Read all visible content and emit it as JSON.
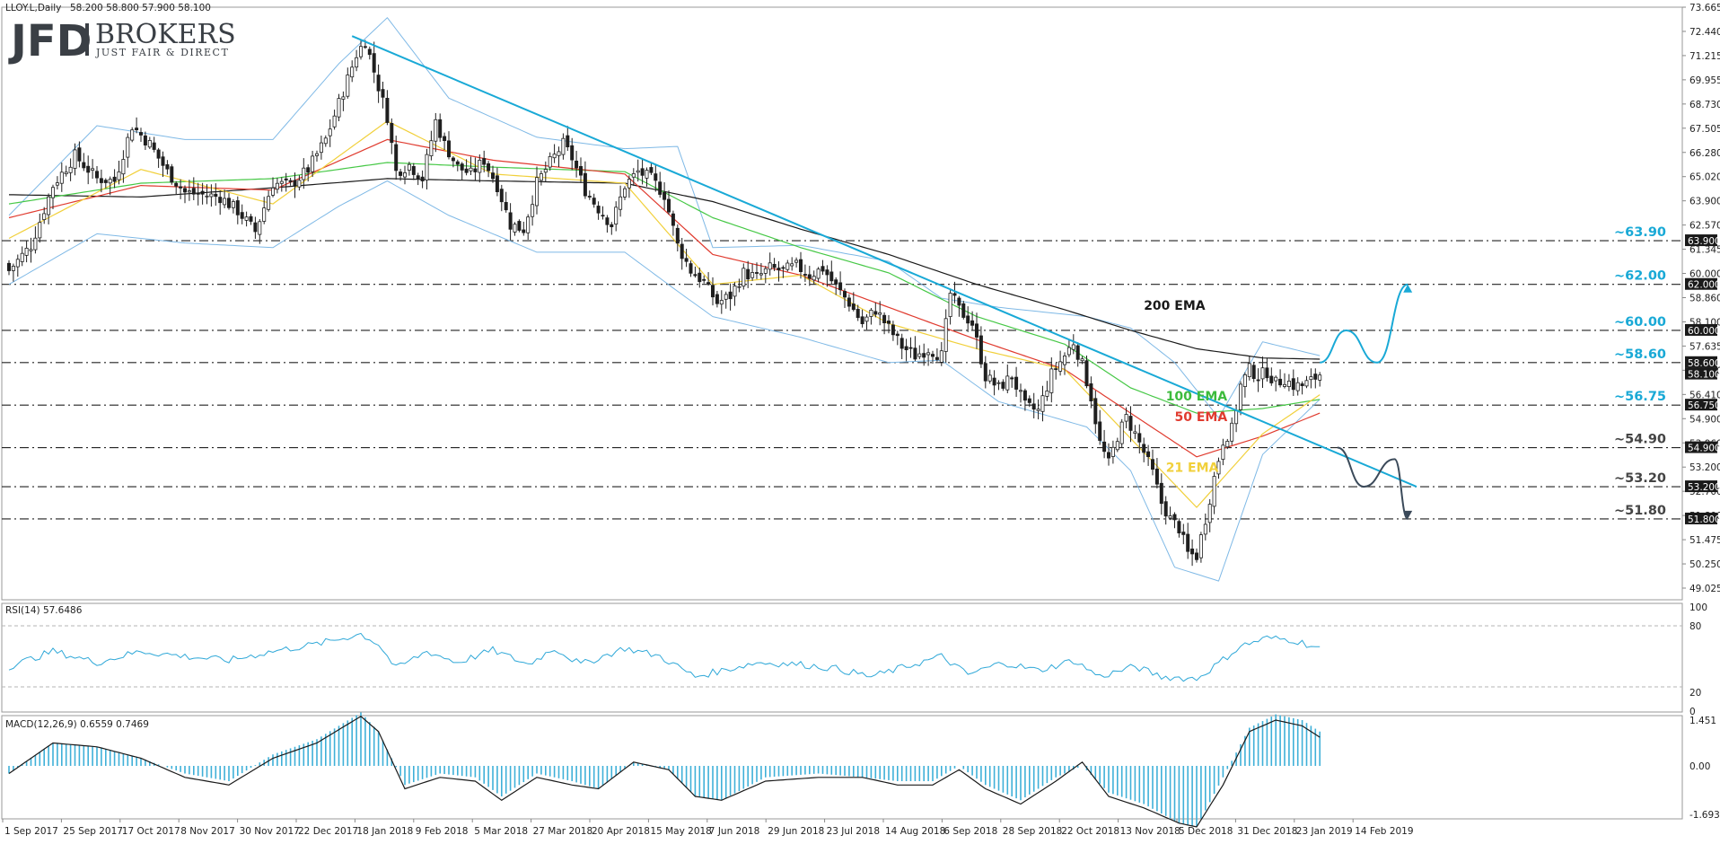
{
  "header": {
    "title": "LLOY.L,Daily",
    "ohlc": "58.200 58.800 57.900 58.100",
    "rsi": "RSI(14) 57.6486",
    "macd": "MACD(12,26,9) 0.6559 0.7469"
  },
  "logo": {
    "mark": "JFD",
    "name": "BROKERS",
    "tagline": "JUST FAIR & DIRECT"
  },
  "colors": {
    "candle": "#1f1f1f",
    "bollinger": "#7fb9e6",
    "ema21": "#f1d03b",
    "ema50": "#e03b2f",
    "ema100": "#46c846",
    "ema200": "#1a1a1a",
    "trend": "#19a9d6",
    "rsi": "#2fa8d8",
    "macd_hist": "#3fb0d8"
  },
  "price_axis": [
    "73.665",
    "72.440",
    "71.215",
    "69.955",
    "68.730",
    "67.505",
    "66.280",
    "65.020",
    "63.900",
    "62.570",
    "61.345",
    "60.000",
    "58.860",
    "58.100",
    "57.635",
    "56.750",
    "56.410",
    "54.900",
    "53.960",
    "53.200",
    "52.700",
    "51.800",
    "51.475",
    "50.250",
    "49.025"
  ],
  "price_tags": [
    {
      "name": "tag-63900",
      "text": "63.900",
      "v": 63.9,
      "color": "#1a1a1a"
    },
    {
      "name": "tag-62000",
      "text": "62.000",
      "v": 62.0,
      "color": "#1a1a1a"
    },
    {
      "name": "tag-60000",
      "text": "60.000",
      "v": 60.0,
      "color": "#1a1a1a"
    },
    {
      "name": "tag-58600",
      "text": "58.600",
      "v": 58.6,
      "color": "#1a1a1a"
    },
    {
      "name": "tag-58100",
      "text": "58.100",
      "v": 58.1,
      "color": "#1a1a1a"
    },
    {
      "name": "tag-56750",
      "text": "56.750",
      "v": 56.75,
      "color": "#1a1a1a"
    },
    {
      "name": "tag-54900",
      "text": "54.900",
      "v": 54.9,
      "color": "#1a1a1a"
    },
    {
      "name": "tag-53200",
      "text": "53.200",
      "v": 53.2,
      "color": "#1a1a1a"
    },
    {
      "name": "tag-51800",
      "text": "51.800",
      "v": 51.8,
      "color": "#1a1a1a"
    }
  ],
  "levels": [
    {
      "name": "level-63-90",
      "text": "~63.90",
      "v": 63.9,
      "color": "#19a9d6"
    },
    {
      "name": "level-62-00",
      "text": "~62.00",
      "v": 62.0,
      "color": "#19a9d6"
    },
    {
      "name": "level-60-00",
      "text": "~60.00",
      "v": 60.0,
      "color": "#19a9d6"
    },
    {
      "name": "level-58-60",
      "text": "~58.60",
      "v": 58.6,
      "color": "#19a9d6"
    },
    {
      "name": "level-56-75",
      "text": "~56.75",
      "v": 56.75,
      "color": "#19a9d6"
    },
    {
      "name": "level-54-90",
      "text": "~54.90",
      "v": 54.9,
      "color": "#444444"
    },
    {
      "name": "level-53-20",
      "text": "~53.20",
      "v": 53.2,
      "color": "#444444"
    },
    {
      "name": "level-51-80",
      "text": "~51.80",
      "v": 51.8,
      "color": "#444444"
    }
  ],
  "ema_labels": [
    {
      "name": "label-200-ema",
      "text": "200 EMA",
      "color": "#1a1a1a",
      "bar": 258,
      "v": 60.9
    },
    {
      "name": "label-100-ema",
      "text": "100 EMA",
      "color": "#3dbb3d",
      "bar": 263,
      "v": 56.95
    },
    {
      "name": "label-50-ema",
      "text": "50 EMA",
      "color": "#e03b2f",
      "bar": 265,
      "v": 56.05
    },
    {
      "name": "label-21-ema",
      "text": "21 EMA",
      "color": "#f1d03b",
      "bar": 263,
      "v": 53.85
    }
  ],
  "rsi_axis": [
    "100",
    "80",
    "20",
    "0"
  ],
  "macd_axis": [
    "1.451",
    "0.00",
    "-1.6934"
  ],
  "dates": [
    "1 Sep 2017",
    "25 Sep 2017",
    "17 Oct 2017",
    "8 Nov 2017",
    "30 Nov 2017",
    "22 Dec 2017",
    "18 Jan 2018",
    "9 Feb 2018",
    "5 Mar 2018",
    "27 Mar 2018",
    "20 Apr 2018",
    "15 May 2018",
    "7 Jun 2018",
    "29 Jun 2018",
    "23 Jul 2018",
    "14 Aug 2018",
    "6 Sep 2018",
    "28 Sep 2018",
    "22 Oct 2018",
    "13 Nov 2018",
    "5 Dec 2018",
    "31 Dec 2018",
    "23 Jan 2019",
    "14 Feb 2019"
  ],
  "chart_data": {
    "type": "candlestick",
    "symbol": "LLOY.L",
    "timeframe": "Daily",
    "ylim": [
      49.025,
      73.665
    ],
    "rsi_ylim": [
      0,
      100
    ],
    "macd_ylim": [
      -1.6934,
      1.451
    ],
    "close_anchors": [
      [
        0,
        62.6
      ],
      [
        5,
        63.7
      ],
      [
        10,
        66.3
      ],
      [
        15,
        67.6
      ],
      [
        20,
        66.6
      ],
      [
        24,
        66.5
      ],
      [
        28,
        68.9
      ],
      [
        32,
        68.1
      ],
      [
        36,
        66.9
      ],
      [
        40,
        66.0
      ],
      [
        44,
        65.9
      ],
      [
        48,
        65.8
      ],
      [
        52,
        65.2
      ],
      [
        56,
        64.3
      ],
      [
        60,
        66.4
      ],
      [
        64,
        66.3
      ],
      [
        68,
        67.0
      ],
      [
        72,
        68.3
      ],
      [
        76,
        70.4
      ],
      [
        79,
        72.0
      ],
      [
        81,
        72.6
      ],
      [
        84,
        70.6
      ],
      [
        86,
        69.3
      ],
      [
        88,
        66.9
      ],
      [
        91,
        67.2
      ],
      [
        94,
        66.6
      ],
      [
        97,
        69.1
      ],
      [
        99,
        68.1
      ],
      [
        102,
        67.1
      ],
      [
        105,
        66.8
      ],
      [
        108,
        67.4
      ],
      [
        111,
        66.3
      ],
      [
        114,
        64.6
      ],
      [
        117,
        64.4
      ],
      [
        120,
        66.4
      ],
      [
        123,
        67.3
      ],
      [
        126,
        68.1
      ],
      [
        128,
        67.5
      ],
      [
        131,
        66.1
      ],
      [
        134,
        65.3
      ],
      [
        137,
        64.6
      ],
      [
        140,
        66.3
      ],
      [
        143,
        66.9
      ],
      [
        146,
        66.6
      ],
      [
        149,
        65.9
      ],
      [
        152,
        63.7
      ],
      [
        155,
        62.6
      ],
      [
        158,
        62.1
      ],
      [
        161,
        61.2
      ],
      [
        164,
        61.5
      ],
      [
        167,
        62.5
      ],
      [
        170,
        62.3
      ],
      [
        173,
        62.7
      ],
      [
        176,
        62.6
      ],
      [
        179,
        62.8
      ],
      [
        182,
        62.4
      ],
      [
        185,
        62.7
      ],
      [
        188,
        61.9
      ],
      [
        191,
        61.2
      ],
      [
        194,
        60.3
      ],
      [
        197,
        60.9
      ],
      [
        200,
        60.1
      ],
      [
        203,
        59.3
      ],
      [
        206,
        58.9
      ],
      [
        209,
        59.2
      ],
      [
        212,
        58.9
      ],
      [
        214,
        61.6
      ],
      [
        216,
        60.9
      ],
      [
        219,
        60.3
      ],
      [
        222,
        58.0
      ],
      [
        225,
        57.5
      ],
      [
        228,
        58.0
      ],
      [
        231,
        56.7
      ],
      [
        234,
        56.5
      ],
      [
        237,
        58.1
      ],
      [
        240,
        58.9
      ],
      [
        242,
        59.5
      ],
      [
        244,
        58.5
      ],
      [
        246,
        57.1
      ],
      [
        248,
        55.1
      ],
      [
        250,
        54.2
      ],
      [
        252,
        55.4
      ],
      [
        254,
        56.2
      ],
      [
        256,
        55.5
      ],
      [
        258,
        54.7
      ],
      [
        260,
        53.8
      ],
      [
        262,
        52.5
      ],
      [
        264,
        51.8
      ],
      [
        266,
        51.4
      ],
      [
        268,
        50.3
      ],
      [
        270,
        50.2
      ],
      [
        272,
        51.8
      ],
      [
        274,
        53.6
      ],
      [
        276,
        55.2
      ],
      [
        278,
        55.7
      ],
      [
        280,
        57.6
      ],
      [
        282,
        58.3
      ],
      [
        284,
        58.0
      ],
      [
        286,
        58.2
      ],
      [
        288,
        57.7
      ],
      [
        290,
        57.9
      ],
      [
        292,
        57.6
      ],
      [
        294,
        57.6
      ],
      [
        296,
        57.8
      ],
      [
        298,
        58.1
      ]
    ],
    "ema200_anchors": [
      [
        0,
        65.9
      ],
      [
        30,
        65.8
      ],
      [
        60,
        66.2
      ],
      [
        86,
        66.6
      ],
      [
        110,
        66.5
      ],
      [
        140,
        66.4
      ],
      [
        160,
        65.6
      ],
      [
        180,
        64.4
      ],
      [
        200,
        63.3
      ],
      [
        220,
        62.0
      ],
      [
        240,
        60.9
      ],
      [
        255,
        60.0
      ],
      [
        270,
        59.2
      ],
      [
        285,
        58.8
      ],
      [
        298,
        58.75
      ]
    ],
    "ema100_anchors": [
      [
        0,
        65.5
      ],
      [
        30,
        66.4
      ],
      [
        60,
        66.6
      ],
      [
        86,
        67.3
      ],
      [
        110,
        67.1
      ],
      [
        140,
        66.9
      ],
      [
        160,
        64.9
      ],
      [
        180,
        63.6
      ],
      [
        200,
        62.5
      ],
      [
        220,
        60.6
      ],
      [
        240,
        59.4
      ],
      [
        255,
        57.5
      ],
      [
        270,
        56.4
      ],
      [
        285,
        56.6
      ],
      [
        298,
        57.0
      ]
    ],
    "ema50_anchors": [
      [
        0,
        64.9
      ],
      [
        30,
        66.3
      ],
      [
        60,
        66.1
      ],
      [
        86,
        68.3
      ],
      [
        110,
        67.4
      ],
      [
        140,
        66.8
      ],
      [
        160,
        63.3
      ],
      [
        180,
        62.4
      ],
      [
        200,
        61.0
      ],
      [
        220,
        59.6
      ],
      [
        240,
        58.3
      ],
      [
        255,
        56.4
      ],
      [
        270,
        54.5
      ],
      [
        285,
        55.4
      ],
      [
        298,
        56.4
      ]
    ],
    "ema21_anchors": [
      [
        0,
        64.0
      ],
      [
        30,
        67.0
      ],
      [
        60,
        65.5
      ],
      [
        86,
        69.1
      ],
      [
        110,
        66.8
      ],
      [
        140,
        66.4
      ],
      [
        160,
        62.0
      ],
      [
        180,
        62.4
      ],
      [
        200,
        60.3
      ],
      [
        220,
        59.2
      ],
      [
        240,
        58.3
      ],
      [
        255,
        55.3
      ],
      [
        270,
        52.3
      ],
      [
        285,
        55.5
      ],
      [
        298,
        57.2
      ]
    ],
    "bb_upper_anchors": [
      [
        0,
        65.0
      ],
      [
        20,
        68.9
      ],
      [
        40,
        68.3
      ],
      [
        60,
        68.3
      ],
      [
        75,
        71.6
      ],
      [
        86,
        73.6
      ],
      [
        100,
        70.1
      ],
      [
        120,
        68.4
      ],
      [
        140,
        67.9
      ],
      [
        152,
        68.0
      ],
      [
        160,
        63.6
      ],
      [
        180,
        63.7
      ],
      [
        200,
        63.0
      ],
      [
        212,
        61.4
      ],
      [
        225,
        61.0
      ],
      [
        245,
        60.6
      ],
      [
        255,
        60.1
      ],
      [
        265,
        58.6
      ],
      [
        275,
        56.2
      ],
      [
        285,
        59.5
      ],
      [
        298,
        58.9
      ]
    ],
    "bb_lower_anchors": [
      [
        0,
        62.0
      ],
      [
        20,
        64.2
      ],
      [
        40,
        63.8
      ],
      [
        60,
        63.6
      ],
      [
        75,
        65.4
      ],
      [
        86,
        66.5
      ],
      [
        100,
        65.0
      ],
      [
        120,
        63.4
      ],
      [
        140,
        63.4
      ],
      [
        152,
        61.7
      ],
      [
        160,
        60.6
      ],
      [
        180,
        59.7
      ],
      [
        200,
        58.6
      ],
      [
        212,
        58.7
      ],
      [
        225,
        56.9
      ],
      [
        245,
        55.8
      ],
      [
        255,
        53.9
      ],
      [
        265,
        49.7
      ],
      [
        275,
        49.1
      ],
      [
        285,
        54.6
      ],
      [
        298,
        57.0
      ]
    ],
    "rsi_anchors": [
      [
        0,
        40
      ],
      [
        10,
        55
      ],
      [
        20,
        44
      ],
      [
        30,
        55
      ],
      [
        40,
        50
      ],
      [
        50,
        46
      ],
      [
        60,
        55
      ],
      [
        70,
        62
      ],
      [
        80,
        72
      ],
      [
        84,
        62
      ],
      [
        88,
        38
      ],
      [
        95,
        55
      ],
      [
        102,
        44
      ],
      [
        110,
        56
      ],
      [
        118,
        42
      ],
      [
        124,
        58
      ],
      [
        130,
        42
      ],
      [
        140,
        58
      ],
      [
        148,
        50
      ],
      [
        156,
        30
      ],
      [
        162,
        36
      ],
      [
        170,
        44
      ],
      [
        180,
        42
      ],
      [
        188,
        38
      ],
      [
        196,
        30
      ],
      [
        204,
        40
      ],
      [
        212,
        50
      ],
      [
        218,
        32
      ],
      [
        226,
        44
      ],
      [
        234,
        36
      ],
      [
        242,
        46
      ],
      [
        248,
        30
      ],
      [
        256,
        40
      ],
      [
        262,
        30
      ],
      [
        270,
        28
      ],
      [
        274,
        40
      ],
      [
        280,
        60
      ],
      [
        286,
        68
      ],
      [
        292,
        66
      ],
      [
        298,
        58
      ]
    ],
    "macd_anchors": [
      [
        0,
        -0.2
      ],
      [
        10,
        0.6
      ],
      [
        20,
        0.5
      ],
      [
        30,
        0.2
      ],
      [
        40,
        -0.3
      ],
      [
        50,
        -0.5
      ],
      [
        60,
        0.2
      ],
      [
        70,
        0.6
      ],
      [
        80,
        1.3
      ],
      [
        84,
        0.9
      ],
      [
        90,
        -0.6
      ],
      [
        98,
        -0.3
      ],
      [
        106,
        -0.4
      ],
      [
        112,
        -0.9
      ],
      [
        120,
        -0.3
      ],
      [
        128,
        -0.5
      ],
      [
        134,
        -0.6
      ],
      [
        142,
        0.1
      ],
      [
        150,
        -0.1
      ],
      [
        156,
        -0.8
      ],
      [
        162,
        -0.9
      ],
      [
        172,
        -0.4
      ],
      [
        184,
        -0.3
      ],
      [
        194,
        -0.3
      ],
      [
        202,
        -0.5
      ],
      [
        210,
        -0.5
      ],
      [
        216,
        -0.1
      ],
      [
        222,
        -0.6
      ],
      [
        230,
        -1.0
      ],
      [
        238,
        -0.4
      ],
      [
        244,
        0.1
      ],
      [
        250,
        -0.8
      ],
      [
        258,
        -1.1
      ],
      [
        266,
        -1.5
      ],
      [
        270,
        -1.6
      ],
      [
        276,
        -0.5
      ],
      [
        282,
        0.9
      ],
      [
        288,
        1.2
      ],
      [
        294,
        1.05
      ],
      [
        298,
        0.75
      ]
    ],
    "macd_hist_anchors": [
      [
        0,
        -0.2
      ],
      [
        10,
        0.6
      ],
      [
        20,
        0.5
      ],
      [
        30,
        0.2
      ],
      [
        40,
        -0.2
      ],
      [
        50,
        -0.4
      ],
      [
        60,
        0.3
      ],
      [
        70,
        0.7
      ],
      [
        80,
        1.4
      ],
      [
        84,
        0.9
      ],
      [
        90,
        -0.5
      ],
      [
        98,
        -0.2
      ],
      [
        106,
        -0.3
      ],
      [
        112,
        -0.8
      ],
      [
        120,
        -0.2
      ],
      [
        128,
        -0.4
      ],
      [
        134,
        -0.6
      ],
      [
        142,
        0.1
      ],
      [
        150,
        -0.1
      ],
      [
        156,
        -0.8
      ],
      [
        162,
        -0.9
      ],
      [
        172,
        -0.3
      ],
      [
        184,
        -0.2
      ],
      [
        194,
        -0.3
      ],
      [
        202,
        -0.4
      ],
      [
        210,
        -0.4
      ],
      [
        216,
        0.0
      ],
      [
        222,
        -0.5
      ],
      [
        230,
        -0.9
      ],
      [
        238,
        -0.3
      ],
      [
        244,
        0.0
      ],
      [
        250,
        -0.7
      ],
      [
        258,
        -1.0
      ],
      [
        266,
        -1.5
      ],
      [
        270,
        -1.6
      ],
      [
        276,
        -0.3
      ],
      [
        282,
        1.0
      ],
      [
        288,
        1.35
      ],
      [
        294,
        1.2
      ],
      [
        298,
        0.9
      ]
    ],
    "trendline": [
      [
        78,
        72.8
      ],
      [
        320,
        53.2
      ]
    ],
    "scenario_up": [
      [
        298,
        58.6
      ],
      [
        304,
        60.0
      ],
      [
        311,
        58.6
      ],
      [
        318,
        62.0
      ]
    ],
    "scenario_down": [
      [
        302,
        54.9
      ],
      [
        308,
        53.2
      ],
      [
        315,
        54.4
      ],
      [
        318,
        51.8
      ]
    ]
  }
}
